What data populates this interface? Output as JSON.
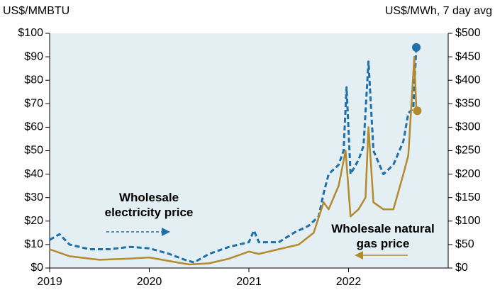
{
  "chart_data": {
    "type": "line",
    "left_axis_label": "US$/MMBTU",
    "right_axis_label": "US$/MWh, 7 day avg",
    "xlim": [
      2019,
      2023
    ],
    "xticks": [
      2019,
      2020,
      2021,
      2022
    ],
    "ylim": [
      0,
      100
    ],
    "yticks": [
      {
        "value": 0,
        "label": "$0"
      },
      {
        "value": 10,
        "label": "$10"
      },
      {
        "value": 20,
        "label": "$20"
      },
      {
        "value": 30,
        "label": "$30"
      },
      {
        "value": 40,
        "label": "$40"
      },
      {
        "value": 50,
        "label": "$50"
      },
      {
        "value": 60,
        "label": "$60"
      },
      {
        "value": 70,
        "label": "$70"
      },
      {
        "value": 80,
        "label": "$80"
      },
      {
        "value": 90,
        "label": "$90"
      },
      {
        "value": 100,
        "label": "$100"
      }
    ],
    "y2lim": [
      0,
      500
    ],
    "y2ticks": [
      {
        "value": 0,
        "label": "$0"
      },
      {
        "value": 50,
        "label": "$50"
      },
      {
        "value": 100,
        "label": "$100"
      },
      {
        "value": 150,
        "label": "$150"
      },
      {
        "value": 200,
        "label": "$200"
      },
      {
        "value": 250,
        "label": "$250"
      },
      {
        "value": 300,
        "label": "$300"
      },
      {
        "value": 350,
        "label": "$350"
      },
      {
        "value": 400,
        "label": "$400"
      },
      {
        "value": 450,
        "label": "$450"
      },
      {
        "value": 500,
        "label": "$500"
      }
    ],
    "series": [
      {
        "name": "Wholesale electricity price",
        "color": "#1f6fa8",
        "axis": "y2",
        "dashed": true,
        "x": [
          2019.0,
          2019.1,
          2019.2,
          2019.4,
          2019.6,
          2019.8,
          2020.0,
          2020.2,
          2020.35,
          2020.45,
          2020.6,
          2020.8,
          2021.0,
          2021.05,
          2021.1,
          2021.3,
          2021.45,
          2021.6,
          2021.7,
          2021.75,
          2021.8,
          2021.9,
          2021.95,
          2021.98,
          2022.02,
          2022.1,
          2022.15,
          2022.2,
          2022.25,
          2022.35,
          2022.45,
          2022.55,
          2022.6,
          2022.65,
          2022.68
        ],
        "values": [
          60,
          72,
          50,
          40,
          40,
          45,
          42,
          30,
          18,
          12,
          30,
          45,
          55,
          80,
          55,
          55,
          75,
          90,
          110,
          160,
          200,
          220,
          250,
          385,
          200,
          230,
          260,
          440,
          250,
          200,
          220,
          270,
          330,
          340,
          470
        ]
      },
      {
        "name": "Wholesale natural gas price",
        "color": "#b38a2e",
        "axis": "y",
        "dashed": false,
        "x": [
          2019.0,
          2019.2,
          2019.5,
          2019.8,
          2020.0,
          2020.2,
          2020.4,
          2020.6,
          2020.8,
          2021.0,
          2021.1,
          2021.3,
          2021.5,
          2021.65,
          2021.75,
          2021.8,
          2021.9,
          2021.97,
          2022.02,
          2022.1,
          2022.17,
          2022.2,
          2022.25,
          2022.35,
          2022.45,
          2022.55,
          2022.6,
          2022.66,
          2022.68,
          2022.69
        ],
        "values": [
          8,
          5,
          3.5,
          4,
          4.5,
          3,
          1.5,
          2,
          4,
          7,
          6,
          8,
          10,
          15,
          28,
          25,
          35,
          50,
          22,
          25,
          30,
          60,
          28,
          25,
          25,
          40,
          48,
          90,
          68,
          67
        ]
      }
    ]
  }
}
